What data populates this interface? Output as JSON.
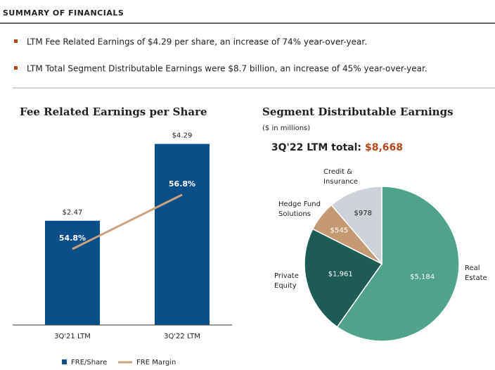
{
  "header": {
    "title": "SUMMARY OF FINANCIALS"
  },
  "bullets": [
    "LTM Fee Related Earnings of $4.29 per share, an increase of 74% year-over-year.",
    "LTM Total Segment Distributable Earnings were $8.7 billion, an increase of 45% year-over-year."
  ],
  "chart_data": [
    {
      "type": "bar",
      "title": "Fee Related Earnings per Share",
      "categories": [
        "3Q'21 LTM",
        "3Q'22 LTM"
      ],
      "series": [
        {
          "name": "FRE/Share",
          "color": "#0b4f8a",
          "values": [
            2.47,
            4.29
          ],
          "value_labels": [
            "$2.47",
            "$4.29"
          ]
        },
        {
          "name": "FRE Margin",
          "type": "line",
          "axis": "y2",
          "color": "#c9a27e",
          "values": [
            54.8,
            56.8
          ],
          "value_labels": [
            "54.8%",
            "56.8%"
          ]
        }
      ],
      "ylim": [
        0,
        4.5
      ],
      "y2lim": [
        52,
        59
      ],
      "legend": "bottom"
    },
    {
      "type": "pie",
      "title": "Segment Distributable Earnings",
      "subtitle": "($ in millions)",
      "annotation": "3Q'22 LTM total:",
      "total": "$8,668",
      "categories": [
        "Real Estate",
        "Private Equity",
        "Hedge Fund Solutions",
        "Credit & Insurance"
      ],
      "values": [
        5184,
        1961,
        545,
        978
      ],
      "value_labels": [
        "$5,184",
        "$1,961",
        "$545",
        "$978"
      ],
      "colors": [
        "#4fa38b",
        "#1d5b56",
        "#c49a74",
        "#cdd2d8"
      ]
    }
  ]
}
